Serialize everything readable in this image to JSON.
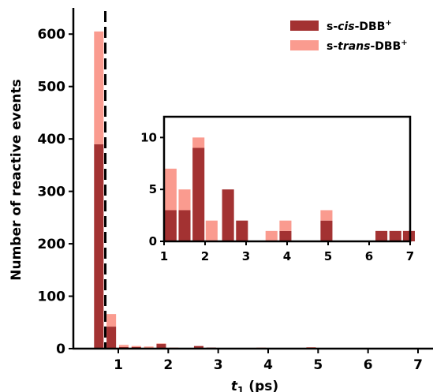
{
  "colors": {
    "cis": "#a33232",
    "trans": "#fa9b8f",
    "axis": "#000000",
    "ref_line": "#000000"
  },
  "chart_data": [
    {
      "type": "bar",
      "stacked": true,
      "xlabel_main": "t",
      "xlabel_sub": "1",
      "xlabel_unit": " (ps)",
      "ylabel": "Number of reactive events",
      "xlim": [
        0.1,
        7.3
      ],
      "ylim": [
        0,
        650
      ],
      "xticks": [
        1,
        2,
        3,
        4,
        5,
        6,
        7
      ],
      "yticks": [
        0,
        100,
        200,
        300,
        400,
        500,
        600
      ],
      "bin_width": 0.25,
      "reference_line_x": 0.74,
      "x": [
        0.61,
        0.86,
        1.11,
        1.36,
        1.61,
        1.86,
        2.11,
        2.36,
        2.61,
        2.86,
        3.11,
        3.36,
        3.61,
        3.86,
        4.11,
        4.36,
        4.61,
        4.86,
        5.11,
        5.36,
        5.61,
        5.86,
        6.11,
        6.36,
        6.61,
        6.86
      ],
      "series": [
        {
          "name": "s-cis-DBB",
          "name_prefix": "s-",
          "name_italic": "cis",
          "name_suffix": "-DBB",
          "name_sup": "+",
          "values": [
            390,
            42,
            3,
            3,
            1,
            9,
            0,
            0,
            5,
            2,
            0,
            0,
            0,
            1,
            0,
            0,
            0,
            2,
            0,
            0,
            0,
            0,
            1,
            1,
            1,
            0
          ]
        },
        {
          "name": "s-trans-DBB",
          "name_prefix": "s-",
          "name_italic": "trans",
          "name_suffix": "-DBB",
          "name_sup": "+",
          "values": [
            215,
            24,
            4,
            2,
            3,
            1,
            2,
            0,
            0,
            0,
            0,
            0,
            1,
            1,
            0,
            0,
            0,
            1,
            0,
            0,
            0,
            0,
            0,
            0,
            0,
            0
          ]
        }
      ],
      "legend_position": "top-right"
    },
    {
      "type": "bar",
      "stacked": true,
      "inset": true,
      "xlim": [
        1,
        7
      ],
      "ylim": [
        0,
        12
      ],
      "xticks": [
        1,
        2,
        3,
        4,
        5,
        6,
        7
      ],
      "yticks": [
        0,
        5,
        10
      ],
      "bin_width": 0.29,
      "x": [
        1.16,
        1.5,
        1.84,
        2.16,
        2.56,
        2.9,
        3.62,
        3.96,
        4.96,
        6.3,
        6.64,
        6.97
      ],
      "series": [
        {
          "name": "s-cis-DBB",
          "values": [
            3,
            3,
            9,
            0,
            5,
            2,
            0,
            1,
            2,
            1,
            1,
            1
          ]
        },
        {
          "name": "s-trans-DBB",
          "values": [
            4,
            2,
            1,
            2,
            0,
            0,
            1,
            1,
            1,
            0,
            0,
            0
          ]
        }
      ]
    }
  ]
}
